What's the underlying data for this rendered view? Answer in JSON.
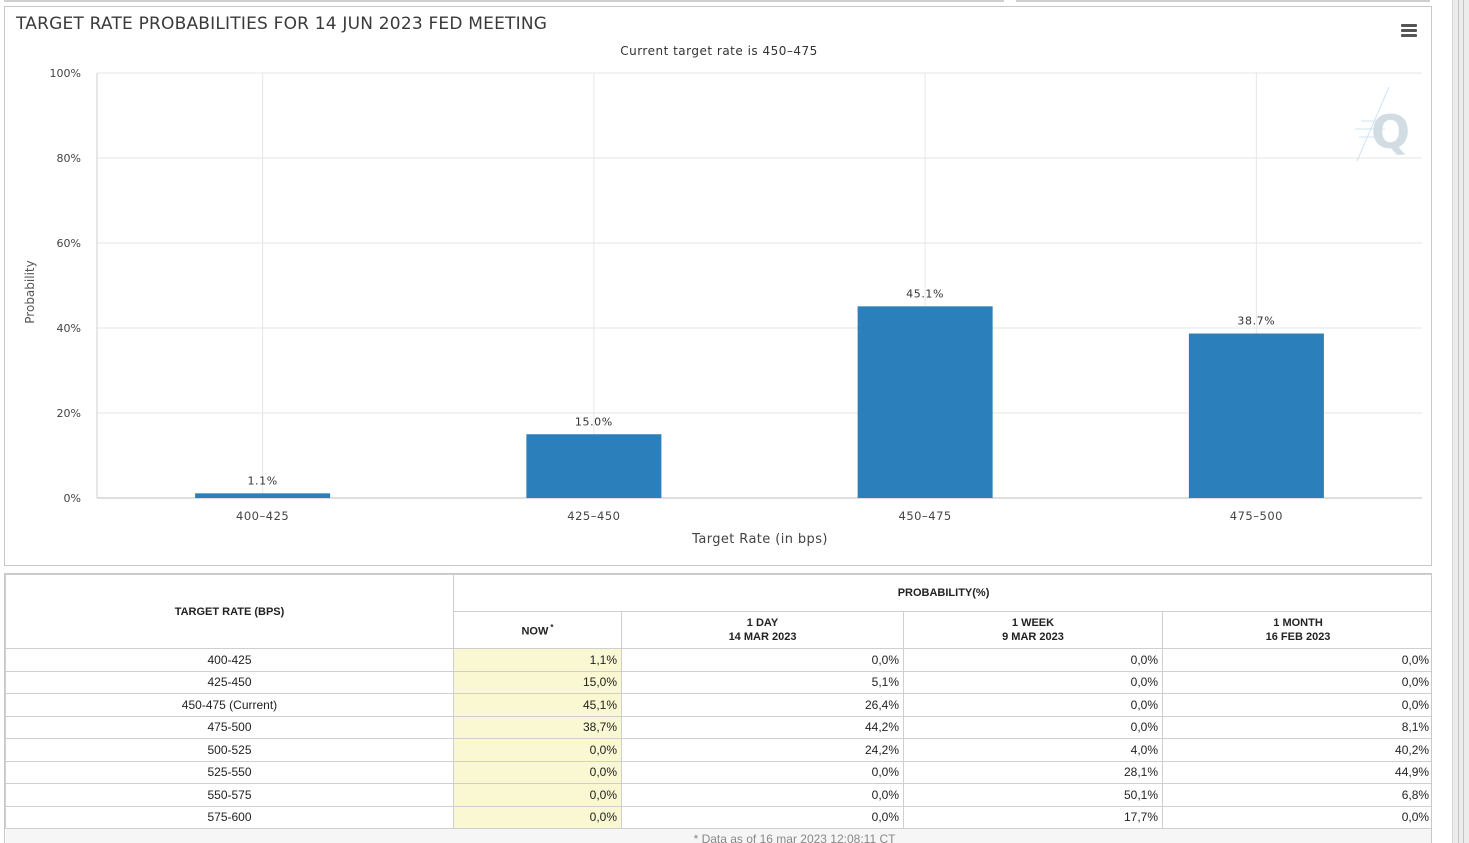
{
  "chart": {
    "title": "TARGET RATE PROBABILITIES FOR 14 JUN 2023 FED MEETING",
    "subtitle": "Current target rate is 450–475",
    "menu_icon": "hamburger-menu-icon",
    "watermark_icon": "quikstrike-q-logo",
    "bar_color": "#2b7fba"
  },
  "chart_data": {
    "type": "bar",
    "categories": [
      "400–425",
      "425–450",
      "450–475",
      "475–500"
    ],
    "values": [
      1.1,
      15.0,
      45.1,
      38.7
    ],
    "value_labels": [
      "1.1%",
      "15.0%",
      "45.1%",
      "38.7%"
    ],
    "title": "TARGET RATE PROBABILITIES FOR 14 JUN 2023 FED MEETING",
    "subtitle": "Current target rate is 450–475",
    "xlabel": "Target Rate (in bps)",
    "ylabel": "Probability",
    "ylim": [
      0,
      100
    ],
    "yticks": [
      "0%",
      "20%",
      "40%",
      "60%",
      "80%",
      "100%"
    ],
    "grid": true,
    "legend": "none"
  },
  "table": {
    "rate_header": "TARGET RATE (BPS)",
    "prob_header": "PROBABILITY(%)",
    "now_label": "NOW",
    "now_star": "*",
    "day": {
      "label": "1 DAY",
      "date": "14 MAR 2023"
    },
    "week": {
      "label": "1 WEEK",
      "date": "9 MAR 2023"
    },
    "month": {
      "label": "1 MONTH",
      "date": "16 FEB 2023"
    },
    "rows": [
      {
        "rate": "400-425",
        "now": "1,1%",
        "day": "0,0%",
        "week": "0,0%",
        "month": "0,0%"
      },
      {
        "rate": "425-450",
        "now": "15,0%",
        "day": "5,1%",
        "week": "0,0%",
        "month": "0,0%"
      },
      {
        "rate": "450-475 (Current)",
        "now": "45,1%",
        "day": "26,4%",
        "week": "0,0%",
        "month": "0,0%"
      },
      {
        "rate": "475-500",
        "now": "38,7%",
        "day": "44,2%",
        "week": "0,0%",
        "month": "8,1%"
      },
      {
        "rate": "500-525",
        "now": "0,0%",
        "day": "24,2%",
        "week": "4,0%",
        "month": "40,2%"
      },
      {
        "rate": "525-550",
        "now": "0,0%",
        "day": "0,0%",
        "week": "28,1%",
        "month": "44,9%"
      },
      {
        "rate": "550-575",
        "now": "0,0%",
        "day": "0,0%",
        "week": "50,1%",
        "month": "6,8%"
      },
      {
        "rate": "575-600",
        "now": "0,0%",
        "day": "0,0%",
        "week": "17,7%",
        "month": "0,0%"
      }
    ],
    "footnote": "* Data as of 16 mar 2023 12:08:11 CT"
  }
}
